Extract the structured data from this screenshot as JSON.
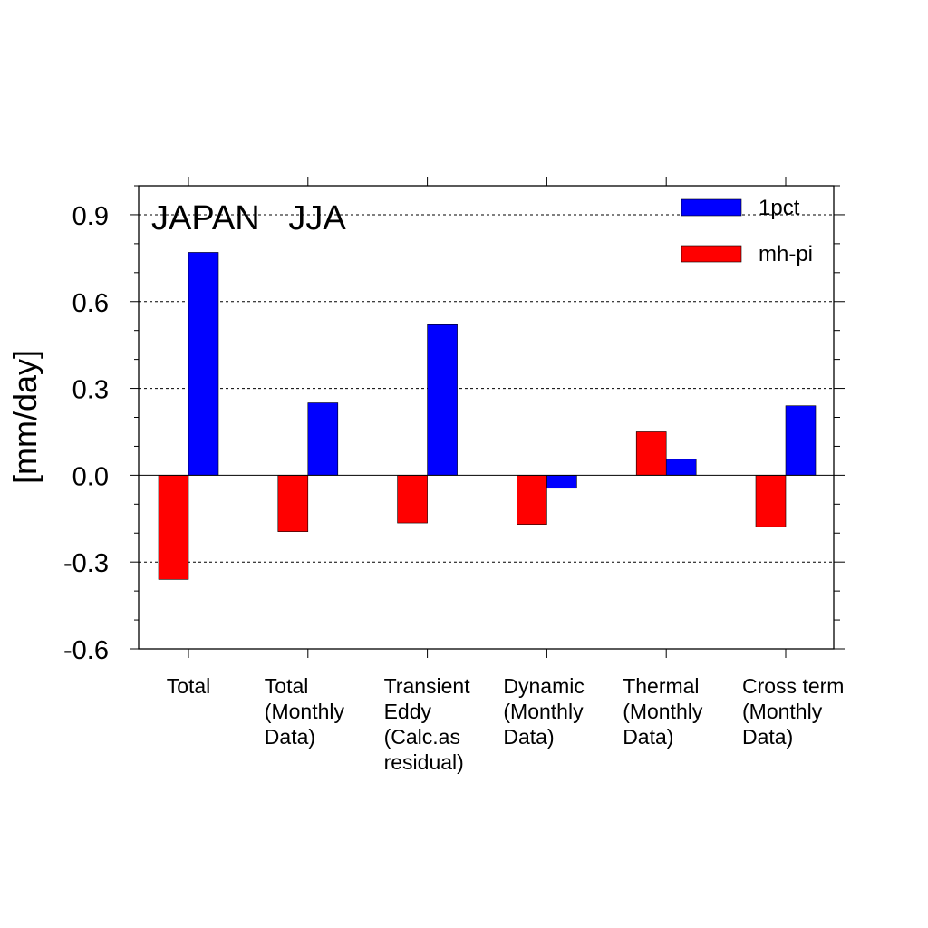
{
  "chart_data": {
    "type": "bar",
    "title": "JAPAN   JJA",
    "ylabel": "[mm/day]",
    "ylim": [
      -0.6,
      1.0
    ],
    "yticks": [
      "0.9",
      "0.6",
      "0.3",
      "0.0",
      "-0.3",
      "-0.6"
    ],
    "ytick_values": [
      0.9,
      0.6,
      0.3,
      0.0,
      -0.3,
      -0.6
    ],
    "grid": "dashed horizontal at major ticks",
    "legend_position": "top-right",
    "categories": [
      [
        "Total"
      ],
      [
        "Total",
        "(Monthly",
        "Data)"
      ],
      [
        "Transient",
        "Eddy",
        "(Calc.as",
        "residual)"
      ],
      [
        "Dynamic",
        "(Monthly",
        "Data)"
      ],
      [
        "Thermal",
        "(Monthly",
        "Data)"
      ],
      [
        "Cross term",
        "(Monthly",
        "Data)"
      ]
    ],
    "series": [
      {
        "name": "1pct",
        "color": "#0000ff",
        "values": [
          0.77,
          0.25,
          0.52,
          -0.045,
          0.055,
          0.24
        ]
      },
      {
        "name": "mh-pi",
        "color": "#ff0000",
        "values": [
          -0.36,
          -0.195,
          -0.165,
          -0.17,
          0.15,
          -0.178
        ]
      }
    ]
  }
}
